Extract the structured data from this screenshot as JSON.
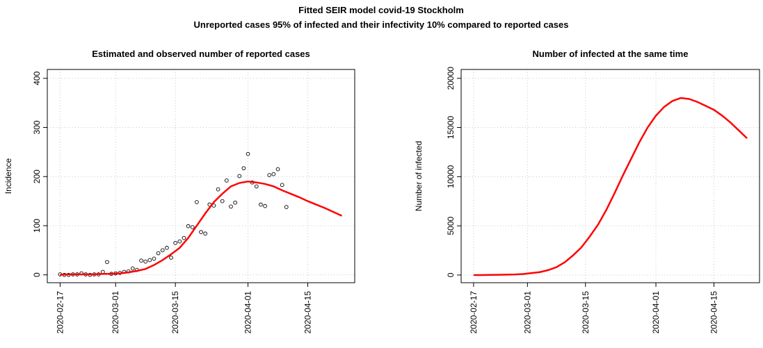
{
  "title": "Fitted SEIR model covid-19 Stockholm",
  "subtitle": "Unreported cases 95% of infected and their infectivity 10% compared to reported cases",
  "chart_data": [
    {
      "type": "line",
      "title": "Estimated and observed number of reported cases",
      "ylabel": "Incidence",
      "xlim": [
        "2020-02-14",
        "2020-04-26"
      ],
      "xticks": [
        "2020-02-17",
        "2020-03-01",
        "2020-03-15",
        "2020-04-01",
        "2020-04-15"
      ],
      "ylim": [
        -16,
        418
      ],
      "yticks": [
        0,
        100,
        200,
        300,
        400
      ],
      "grid": true,
      "series": [
        {
          "mode": "markers",
          "color": "#000000",
          "x": [
            "2020-02-17",
            "2020-02-18",
            "2020-02-19",
            "2020-02-20",
            "2020-02-21",
            "2020-02-22",
            "2020-02-23",
            "2020-02-24",
            "2020-02-25",
            "2020-02-26",
            "2020-02-27",
            "2020-02-28",
            "2020-02-29",
            "2020-03-01",
            "2020-03-02",
            "2020-03-03",
            "2020-03-04",
            "2020-03-05",
            "2020-03-06",
            "2020-03-07",
            "2020-03-08",
            "2020-03-09",
            "2020-03-10",
            "2020-03-11",
            "2020-03-12",
            "2020-03-13",
            "2020-03-14",
            "2020-03-15",
            "2020-03-16",
            "2020-03-17",
            "2020-03-18",
            "2020-03-19",
            "2020-03-20",
            "2020-03-21",
            "2020-03-22",
            "2020-03-23",
            "2020-03-24",
            "2020-03-25",
            "2020-03-26",
            "2020-03-27",
            "2020-03-28",
            "2020-03-29",
            "2020-03-30",
            "2020-03-31",
            "2020-04-01",
            "2020-04-02",
            "2020-04-03",
            "2020-04-04",
            "2020-04-05",
            "2020-04-06",
            "2020-04-07",
            "2020-04-08",
            "2020-04-09",
            "2020-04-10"
          ],
          "values": [
            1,
            0,
            0,
            1,
            1,
            3,
            1,
            0,
            1,
            1,
            6,
            26,
            2,
            3,
            4,
            6,
            7,
            13,
            10,
            29,
            27,
            30,
            33,
            44,
            50,
            55,
            35,
            65,
            68,
            75,
            99,
            97,
            148,
            87,
            84,
            143,
            141,
            174,
            150,
            192,
            139,
            147,
            201,
            217,
            246,
            188,
            180,
            143,
            140,
            203,
            205,
            215,
            183,
            138
          ]
        },
        {
          "mode": "lines",
          "color": "#ff0000",
          "x": [
            "2020-02-17",
            "2020-02-19",
            "2020-02-21",
            "2020-02-23",
            "2020-02-25",
            "2020-02-27",
            "2020-02-29",
            "2020-03-02",
            "2020-03-04",
            "2020-03-06",
            "2020-03-08",
            "2020-03-10",
            "2020-03-12",
            "2020-03-14",
            "2020-03-16",
            "2020-03-18",
            "2020-03-20",
            "2020-03-22",
            "2020-03-24",
            "2020-03-26",
            "2020-03-28",
            "2020-03-30",
            "2020-04-01",
            "2020-04-03",
            "2020-04-05",
            "2020-04-07",
            "2020-04-09",
            "2020-04-11",
            "2020-04-13",
            "2020-04-15",
            "2020-04-17",
            "2020-04-19",
            "2020-04-21",
            "2020-04-23"
          ],
          "values": [
            0.5,
            1,
            1,
            1,
            1,
            2,
            2,
            3,
            5,
            8,
            12,
            20,
            30,
            42,
            55,
            75,
            100,
            125,
            148,
            165,
            180,
            187,
            190,
            188,
            185,
            180,
            172,
            165,
            158,
            150,
            143,
            136,
            128,
            120
          ]
        }
      ]
    },
    {
      "type": "line",
      "title": "Number of infected at the same time",
      "ylabel": "Number of infected",
      "xlim": [
        "2020-02-14",
        "2020-04-26"
      ],
      "xticks": [
        "2020-02-17",
        "2020-03-01",
        "2020-03-15",
        "2020-04-01",
        "2020-04-15"
      ],
      "ylim": [
        -780,
        20900
      ],
      "yticks": [
        0,
        5000,
        10000,
        15000,
        20000
      ],
      "grid": true,
      "series": [
        {
          "mode": "lines",
          "color": "#ff0000",
          "x": [
            "2020-02-17",
            "2020-02-19",
            "2020-02-21",
            "2020-02-23",
            "2020-02-25",
            "2020-02-27",
            "2020-02-29",
            "2020-03-02",
            "2020-03-04",
            "2020-03-06",
            "2020-03-08",
            "2020-03-10",
            "2020-03-12",
            "2020-03-14",
            "2020-03-16",
            "2020-03-18",
            "2020-03-20",
            "2020-03-22",
            "2020-03-24",
            "2020-03-26",
            "2020-03-28",
            "2020-03-30",
            "2020-04-01",
            "2020-04-03",
            "2020-04-05",
            "2020-04-07",
            "2020-04-09",
            "2020-04-11",
            "2020-04-13",
            "2020-04-15",
            "2020-04-17",
            "2020-04-19",
            "2020-04-21",
            "2020-04-23"
          ],
          "values": [
            0,
            0,
            10,
            20,
            40,
            60,
            100,
            200,
            300,
            500,
            800,
            1300,
            2000,
            2800,
            3900,
            5100,
            6600,
            8300,
            10100,
            11800,
            13500,
            15000,
            16200,
            17100,
            17700,
            18000,
            17900,
            17600,
            17200,
            16800,
            16200,
            15500,
            14700,
            13900
          ]
        }
      ]
    }
  ]
}
